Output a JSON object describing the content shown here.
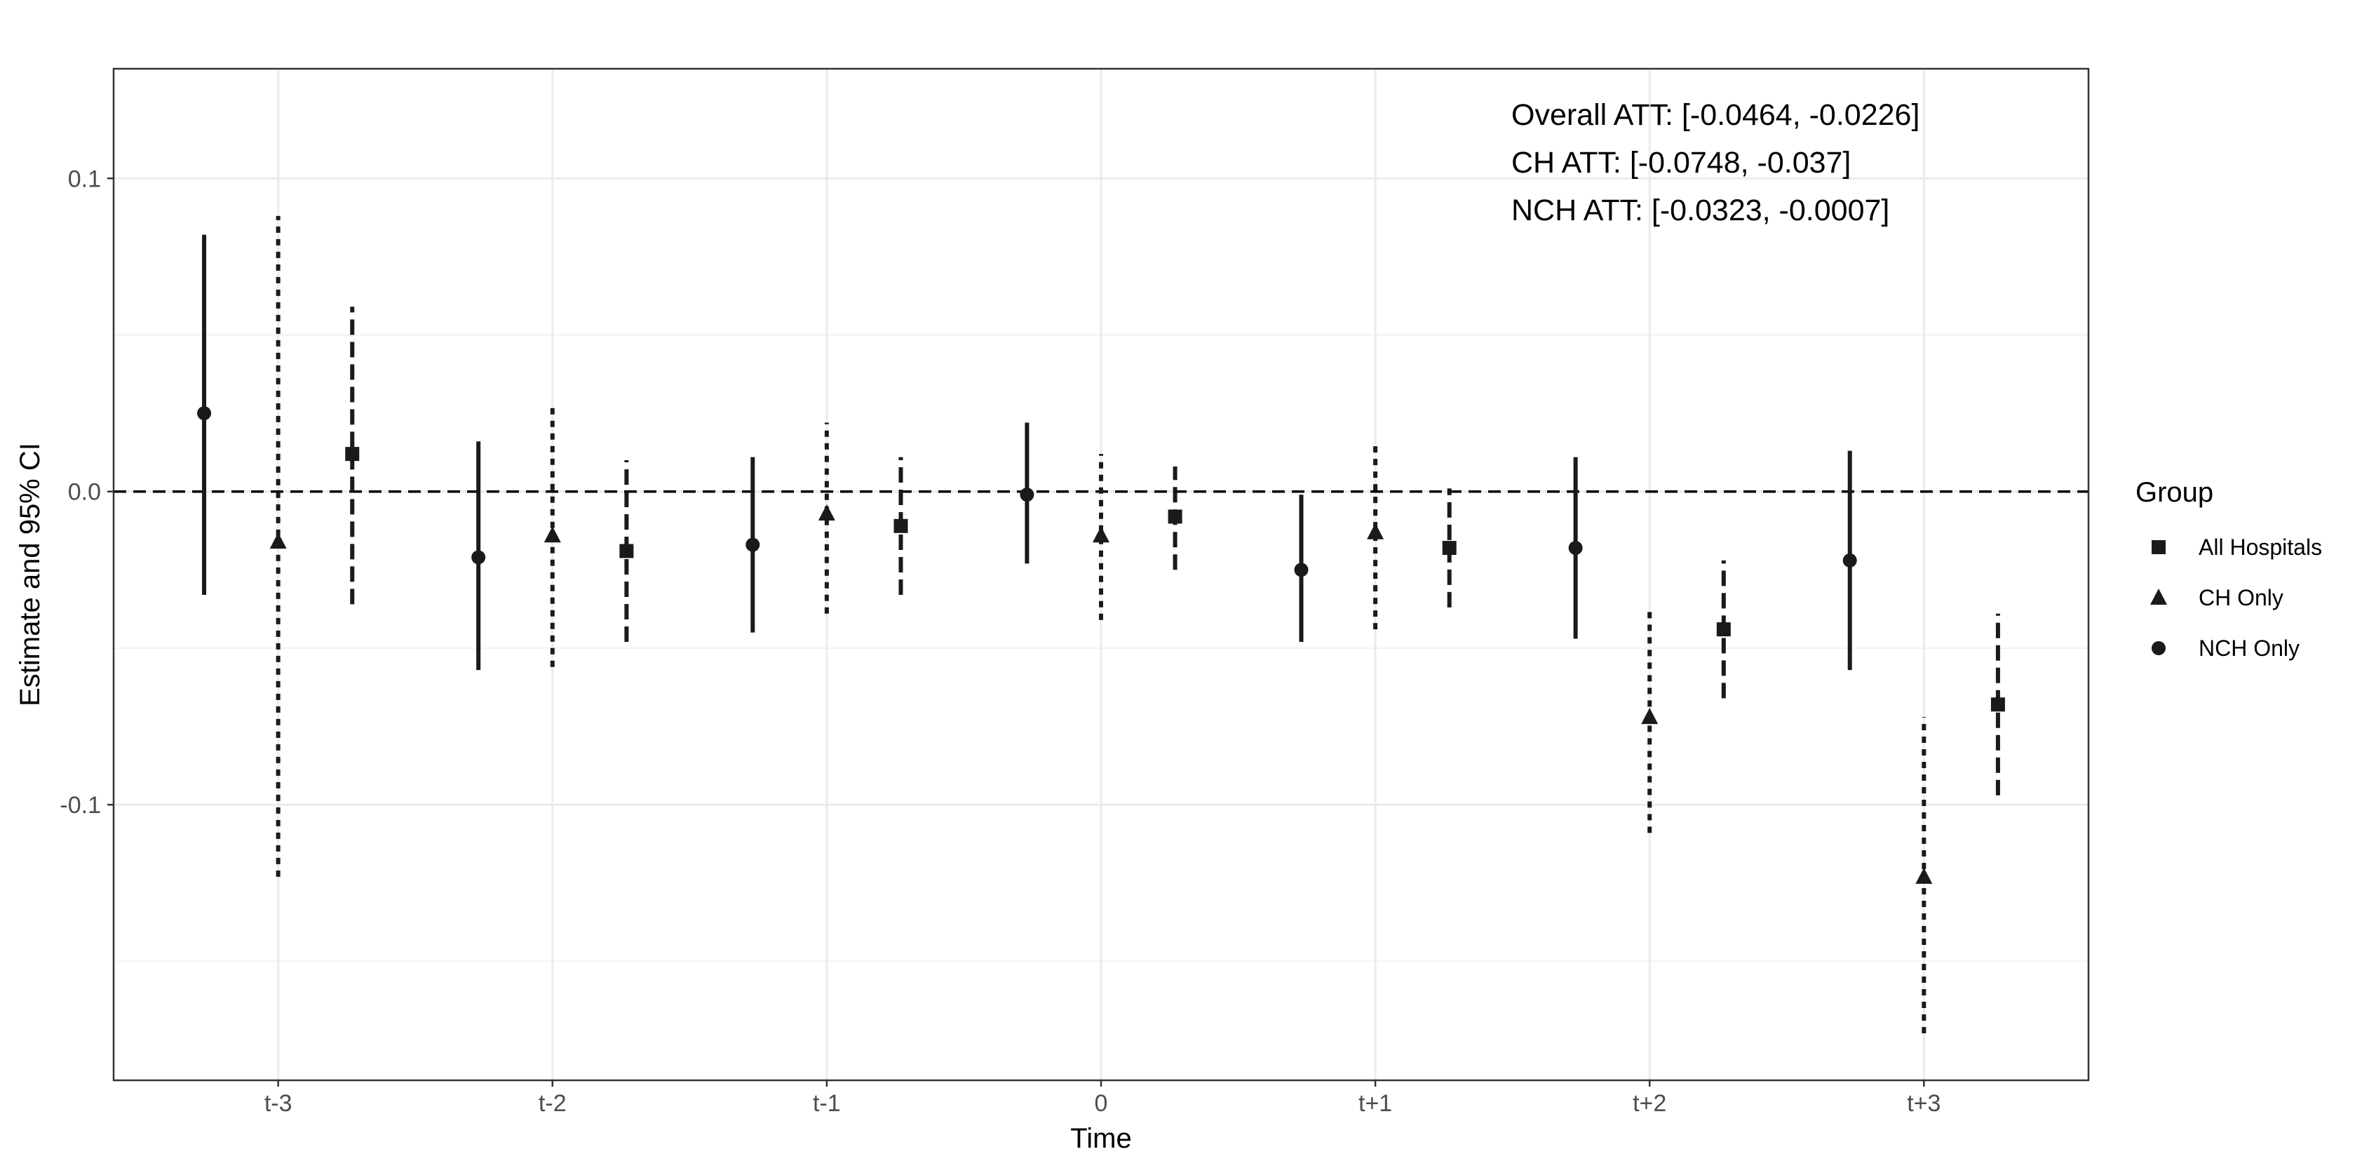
{
  "chart_data": {
    "type": "scatter",
    "subtype": "point-range (estimate with 95% CI)",
    "xlabel": "Time",
    "ylabel": "Estimate and 95% CI",
    "categories": [
      "t-3",
      "t-2",
      "t-1",
      "0",
      "t+1",
      "t+2",
      "t+3"
    ],
    "y_ticks": [
      0.1,
      0.0,
      -0.1
    ],
    "y_tick_labels": [
      "0.1",
      "0.0",
      "-0.1"
    ],
    "ylim": [
      -0.188,
      0.135
    ],
    "reference_line": {
      "y": 0,
      "style": "dashed"
    },
    "grid": true,
    "legend": {
      "title": "Group",
      "position": "right"
    },
    "series": [
      {
        "name": "NCH Only",
        "marker": "circle",
        "line_style": "solid",
        "offset": -0.27,
        "estimate": [
          0.025,
          -0.021,
          -0.017,
          -0.001,
          -0.025,
          -0.018,
          -0.022
        ],
        "ci_low": [
          -0.033,
          -0.057,
          -0.045,
          -0.023,
          -0.048,
          -0.047,
          -0.057
        ],
        "ci_high": [
          0.082,
          0.016,
          0.011,
          0.022,
          -0.001,
          0.011,
          0.013
        ]
      },
      {
        "name": "CH Only",
        "marker": "triangle",
        "line_style": "dotted",
        "offset": 0,
        "estimate": [
          -0.016,
          -0.014,
          -0.007,
          -0.014,
          -0.013,
          -0.072,
          -0.123
        ],
        "ci_low": [
          -0.123,
          -0.056,
          -0.039,
          -0.041,
          -0.044,
          -0.109,
          -0.173
        ],
        "ci_high": [
          0.088,
          0.027,
          0.022,
          0.012,
          0.016,
          -0.037,
          -0.072
        ]
      },
      {
        "name": "All Hospitals",
        "marker": "square",
        "line_style": "dashed",
        "offset": 0.27,
        "estimate": [
          0.012,
          -0.019,
          -0.011,
          -0.008,
          -0.018,
          -0.044,
          -0.068
        ],
        "ci_low": [
          -0.036,
          -0.048,
          -0.033,
          -0.025,
          -0.037,
          -0.066,
          -0.097
        ],
        "ci_high": [
          0.059,
          0.01,
          0.011,
          0.008,
          0.001,
          -0.022,
          -0.039
        ]
      }
    ],
    "legend_order": [
      "All Hospitals",
      "CH Only",
      "NCH Only"
    ],
    "annotations": [
      "Overall ATT: [-0.0464, -0.0226]",
      "CH ATT: [-0.0748, -0.037]",
      "NCH ATT: [-0.0323, -0.0007]"
    ]
  }
}
